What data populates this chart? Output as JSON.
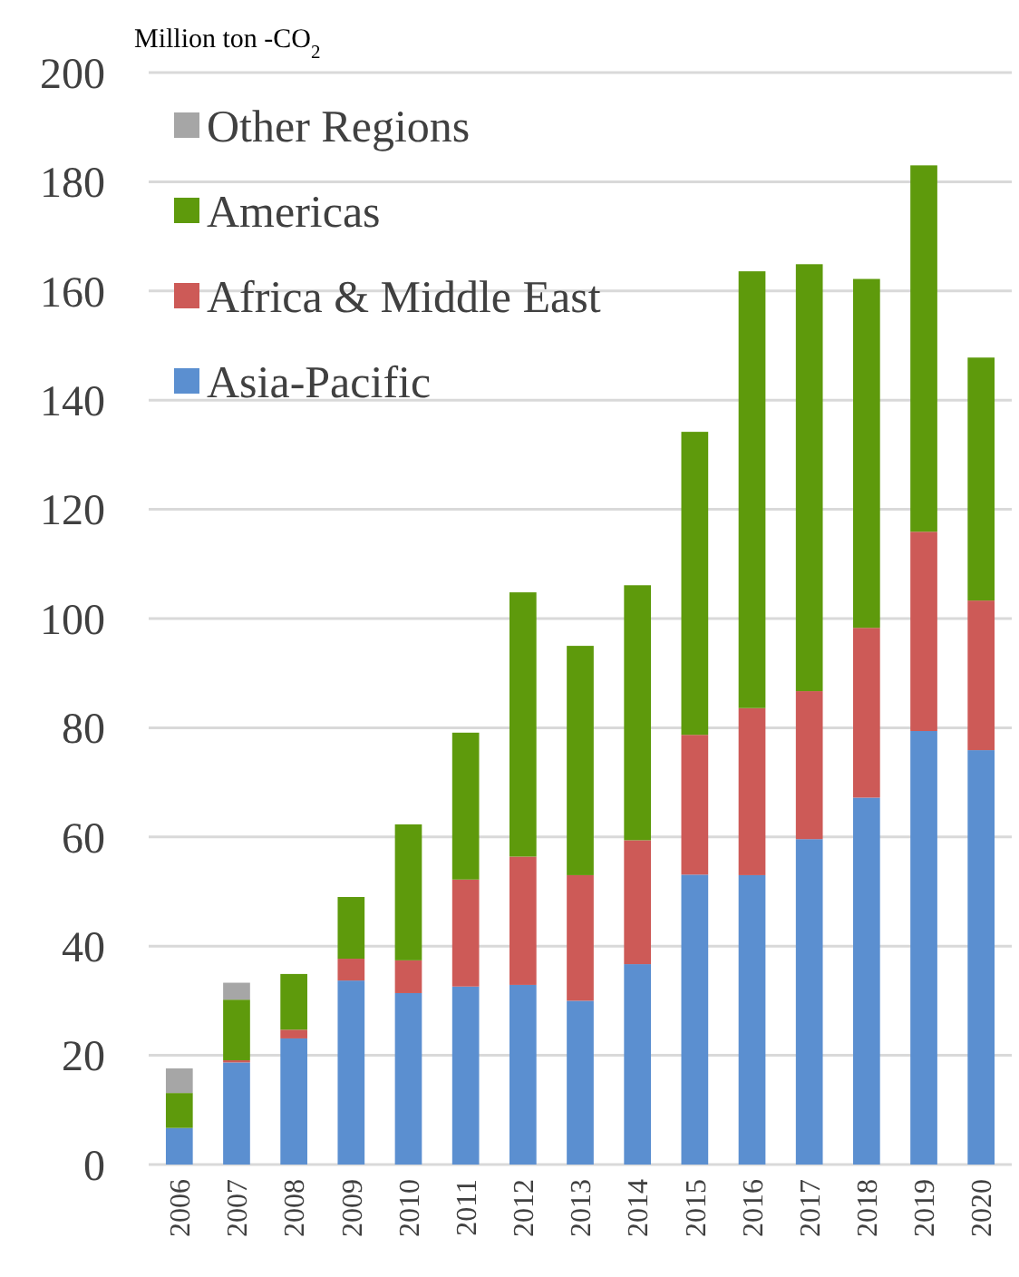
{
  "chart_data": {
    "type": "bar",
    "stacked": true,
    "ylabel": "Million ton -CO$_{2}$",
    "categories": [
      "2006",
      "2007",
      "2008",
      "2009",
      "2010",
      "2011",
      "2012",
      "2013",
      "2014",
      "2015",
      "2016",
      "2017",
      "2018",
      "2019",
      "2020"
    ],
    "series": [
      {
        "name": "Asia-Pacific",
        "color": "#5b8fd0",
        "values": [
          6.7,
          18.7,
          23.1,
          33.7,
          31.4,
          32.6,
          32.9,
          30,
          36.7,
          53.1,
          53,
          59.6,
          67.2,
          79.4,
          75.9
        ]
      },
      {
        "name": "Africa & Middle East",
        "color": "#cd5a57",
        "values": [
          null,
          0.4,
          1.6,
          4,
          6,
          19.6,
          23.5,
          23,
          22.7,
          25.6,
          30.6,
          27.1,
          31.1,
          36.5,
          27.4
        ]
      },
      {
        "name": "Americas",
        "color": "#5e9a0c",
        "values": [
          6.4,
          11.1,
          10.2,
          11.3,
          24.9,
          26.9,
          48.4,
          42,
          46.7,
          55.5,
          80,
          78.2,
          63.9,
          67.1,
          44.5
        ]
      },
      {
        "name": "Other Regions",
        "color": "#a6a6a6",
        "values": [
          4.5,
          3.1,
          null,
          null,
          null,
          null,
          null,
          null,
          null,
          null,
          null,
          null,
          null,
          null,
          null
        ]
      }
    ],
    "ylim": [
      0,
      200
    ],
    "yticks": [
      0,
      20,
      40,
      60,
      80,
      100,
      120,
      140,
      160,
      180,
      200
    ],
    "grid": "y",
    "legend": "top left"
  }
}
